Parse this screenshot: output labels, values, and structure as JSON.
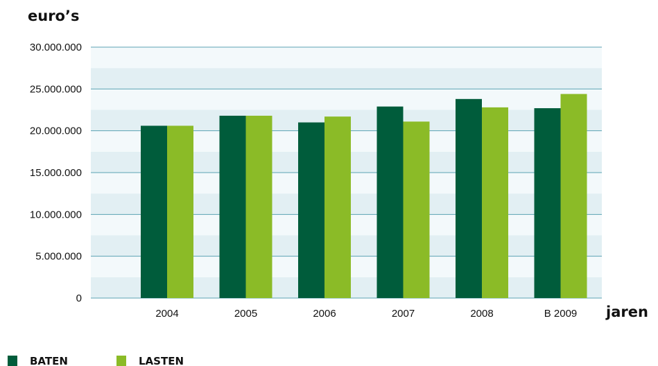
{
  "chart_data": {
    "type": "bar",
    "title": "",
    "ylabel": "euro’s",
    "xlabel": "jaren",
    "categories": [
      "2004",
      "2005",
      "2006",
      "2007",
      "2008",
      "B 2009"
    ],
    "series": [
      {
        "name": "BATEN",
        "color": "#005c3b",
        "values": [
          20600000,
          21800000,
          21000000,
          22900000,
          23800000,
          22700000
        ]
      },
      {
        "name": "LASTEN",
        "color": "#8bbb27",
        "values": [
          20600000,
          21800000,
          21700000,
          21100000,
          22800000,
          24400000
        ]
      }
    ],
    "ylim": [
      0,
      30000000
    ],
    "yticks": [
      0,
      5000000,
      10000000,
      15000000,
      20000000,
      25000000,
      30000000
    ],
    "ytick_labels": [
      "0",
      "5.000.000",
      "10.000.000",
      "15.000.000",
      "20.000.000",
      "25.000.000",
      "30.000.000"
    ],
    "grid": true,
    "legend_position": "bottom-left",
    "band_colors": [
      "#e2eff3",
      "#f3f9fb"
    ],
    "gridline_color": "#5ba3b3"
  }
}
